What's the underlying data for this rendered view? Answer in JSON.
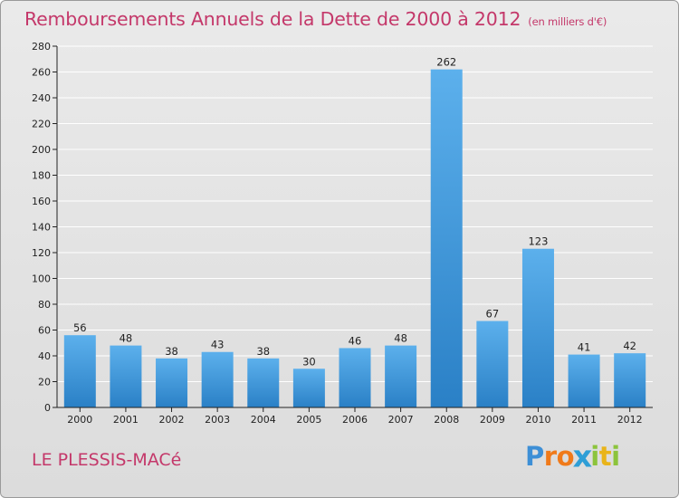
{
  "title": "Remboursements Annuels de la Dette de 2000 à 2012",
  "unit_note": "(en milliers d'€)",
  "commune": "LE PLESSIS-MACé",
  "logo": {
    "text": "Proxiti",
    "letters": [
      {
        "ch": "P",
        "color": "#3d8fd6"
      },
      {
        "ch": "r",
        "color": "#f07a1a"
      },
      {
        "ch": "o",
        "color": "#f07a1a"
      },
      {
        "ch": "x",
        "color": "#2e9ed6"
      },
      {
        "ch": "i",
        "color": "#8cc43c"
      },
      {
        "ch": "t",
        "color": "#e9b41a"
      },
      {
        "ch": "i",
        "color": "#8cc43c"
      }
    ]
  },
  "colors": {
    "title": "#c4386a",
    "bar_top": "#5cb0ec",
    "bar_bottom": "#2a80c6",
    "axis": "#222222",
    "grid": "#ffffff"
  },
  "chart_data": {
    "type": "bar",
    "categories": [
      "2000",
      "2001",
      "2002",
      "2003",
      "2004",
      "2005",
      "2006",
      "2007",
      "2008",
      "2009",
      "2010",
      "2011",
      "2012"
    ],
    "values": [
      56,
      48,
      38,
      43,
      38,
      30,
      46,
      48,
      262,
      67,
      123,
      41,
      42
    ],
    "ylim": [
      0,
      280
    ],
    "yticks": [
      0,
      20,
      40,
      60,
      80,
      100,
      120,
      140,
      160,
      180,
      200,
      220,
      240,
      260,
      280
    ],
    "grid": true,
    "data_labels": true
  }
}
